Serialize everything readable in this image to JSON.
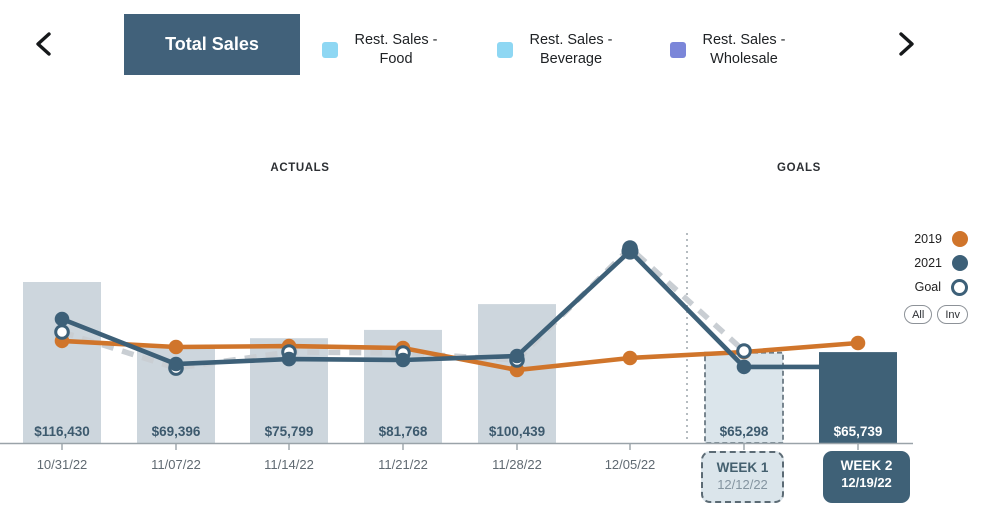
{
  "toolbar": {
    "active_tab_label": "Total Sales",
    "tabs": [
      {
        "line1": "Rest. Sales -",
        "line2": "Food",
        "color": "#8ed7f3"
      },
      {
        "line1": "Rest. Sales -",
        "line2": "Beverage",
        "color": "#8ed7f3"
      },
      {
        "line1": "Rest. Sales -",
        "line2": "Wholesale",
        "color": "#7b86d9"
      }
    ]
  },
  "sections": {
    "actuals": "ACTUALS",
    "goals": "GOALS"
  },
  "legend": {
    "items": [
      {
        "label": "2019",
        "marker": "filled",
        "color": "#d0752b"
      },
      {
        "label": "2021",
        "marker": "filled",
        "color": "#3d6078"
      },
      {
        "label": "Goal",
        "marker": "open",
        "color": "#3d6078"
      }
    ],
    "buttons": [
      "All",
      "Inv"
    ]
  },
  "chart_data": {
    "type": "combo-bar-line",
    "title": "Total Sales",
    "categories": [
      "10/31/22",
      "11/07/22",
      "11/14/22",
      "11/21/22",
      "11/28/22",
      "12/05/22",
      "WEEK 1",
      "WEEK 2"
    ],
    "x_axis_labels": [
      "10/31/22",
      "11/07/22",
      "11/14/22",
      "11/21/22",
      "11/28/22",
      "12/05/22"
    ],
    "bars": {
      "name": "Total Sales (weekly)",
      "unit": "USD",
      "values": [
        116430,
        69396,
        75799,
        81768,
        100439,
        null,
        65298,
        65739
      ],
      "labels": [
        "$116,430",
        "$69,396",
        "$75,799",
        "$81,768",
        "$100,439",
        null,
        "$65,298",
        "$65,739"
      ],
      "kinds": [
        "actual",
        "actual",
        "actual",
        "actual",
        "actual",
        null,
        "planned",
        "committed"
      ]
    },
    "series": [
      {
        "name": "2019",
        "color": "#d0752b",
        "style": "solid",
        "values_est": [
          73800,
          69400,
          70100,
          68700,
          52800,
          61500,
          65800,
          72300
        ]
      },
      {
        "name": "2021",
        "color": "#3d6078",
        "style": "solid",
        "values_est": [
          89700,
          57100,
          60700,
          60000,
          62900,
          138800,
          55000
        ]
      },
      {
        "name": "Goal",
        "line_color": "#c9ced3",
        "marker_color": "#3d6078",
        "style": "dashed-open-markers",
        "values_est": [
          80300,
          54200,
          65800,
          65100,
          60000,
          141000,
          66500
        ]
      }
    ],
    "note": "No y-axis shown; line series values estimated from positions using bar scale.",
    "ylim": [
      0,
      150000
    ],
    "grid": false,
    "week_boxes": [
      {
        "title": "WEEK 1",
        "date": "12/12/22"
      },
      {
        "title": "WEEK 2",
        "date": "12/19/22"
      }
    ],
    "colors": {
      "bar_actual": "#cdd6dd",
      "bar_planned_fill": "#dbe5eb",
      "bar_planned_border": "#6b7a84",
      "bar_committed": "#3f6177",
      "axis": "#9aa3a9",
      "separator": "#adb4ba",
      "label_dark": "#3d5a6e",
      "label_light": "#ffffff",
      "date": "#606a72"
    }
  }
}
